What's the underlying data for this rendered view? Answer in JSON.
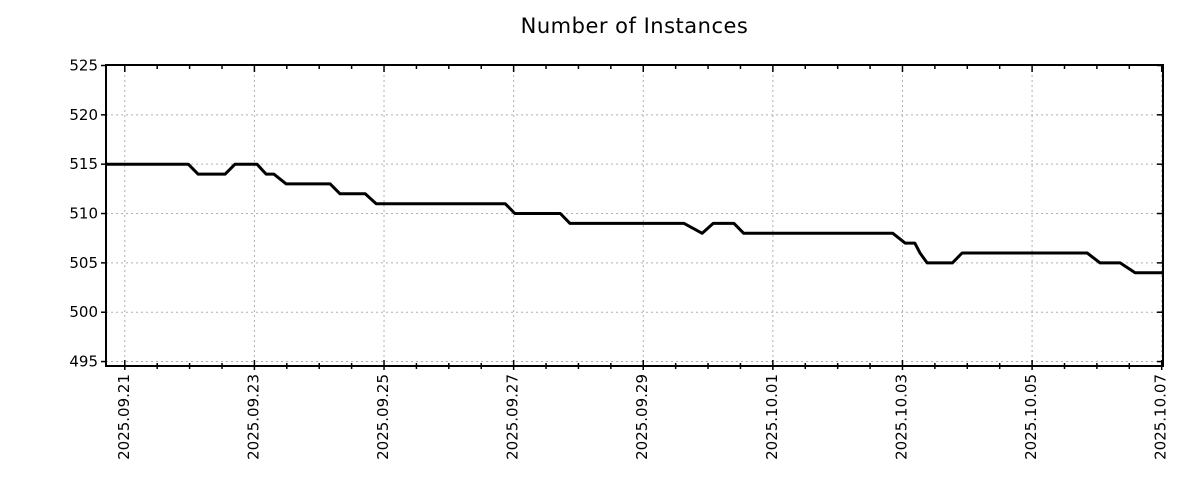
{
  "chart_data": {
    "type": "line",
    "title": "Number of Instances",
    "background_color": "#ffffff",
    "line_color": "#000000",
    "grid_color": "#b0b0b0",
    "axis_color": "#000000",
    "grid": true,
    "legend_position": "none",
    "x_axis": {
      "range_days": [
        -0.29,
        16.02
      ],
      "minor_tick_step_days": 0.5,
      "major_ticks": [
        {
          "day": 0,
          "label": "2025.09.21"
        },
        {
          "day": 2,
          "label": "2025.09.23"
        },
        {
          "day": 4,
          "label": "2025.09.25"
        },
        {
          "day": 6,
          "label": "2025.09.27"
        },
        {
          "day": 8,
          "label": "2025.09.29"
        },
        {
          "day": 10,
          "label": "2025.10.01"
        },
        {
          "day": 12,
          "label": "2025.10.03"
        },
        {
          "day": 14,
          "label": "2025.10.05"
        },
        {
          "day": 16,
          "label": "2025.10.07"
        }
      ]
    },
    "y_axis": {
      "ticks": [
        495,
        500,
        505,
        510,
        515,
        520,
        525
      ],
      "range": [
        494.55,
        525.05
      ]
    },
    "series": [
      {
        "name": "instances",
        "points_day_value": [
          [
            -0.29,
            515
          ],
          [
            0.98,
            515
          ],
          [
            1.13,
            514
          ],
          [
            1.55,
            514
          ],
          [
            1.7,
            515
          ],
          [
            2.04,
            515
          ],
          [
            2.18,
            514
          ],
          [
            2.3,
            514
          ],
          [
            2.49,
            513
          ],
          [
            3.17,
            513
          ],
          [
            3.32,
            512
          ],
          [
            3.71,
            512
          ],
          [
            3.88,
            511
          ],
          [
            5.87,
            511
          ],
          [
            6.02,
            510
          ],
          [
            6.72,
            510
          ],
          [
            6.87,
            509
          ],
          [
            8.63,
            509
          ],
          [
            8.91,
            508
          ],
          [
            9.08,
            509
          ],
          [
            9.4,
            509
          ],
          [
            9.55,
            508
          ],
          [
            11.85,
            508
          ],
          [
            12.04,
            507
          ],
          [
            12.19,
            507
          ],
          [
            12.27,
            506
          ],
          [
            12.38,
            505
          ],
          [
            12.77,
            505
          ],
          [
            12.92,
            506
          ],
          [
            14.85,
            506
          ],
          [
            15.05,
            505
          ],
          [
            15.36,
            505
          ],
          [
            15.59,
            504
          ],
          [
            16.02,
            504
          ]
        ]
      }
    ]
  }
}
